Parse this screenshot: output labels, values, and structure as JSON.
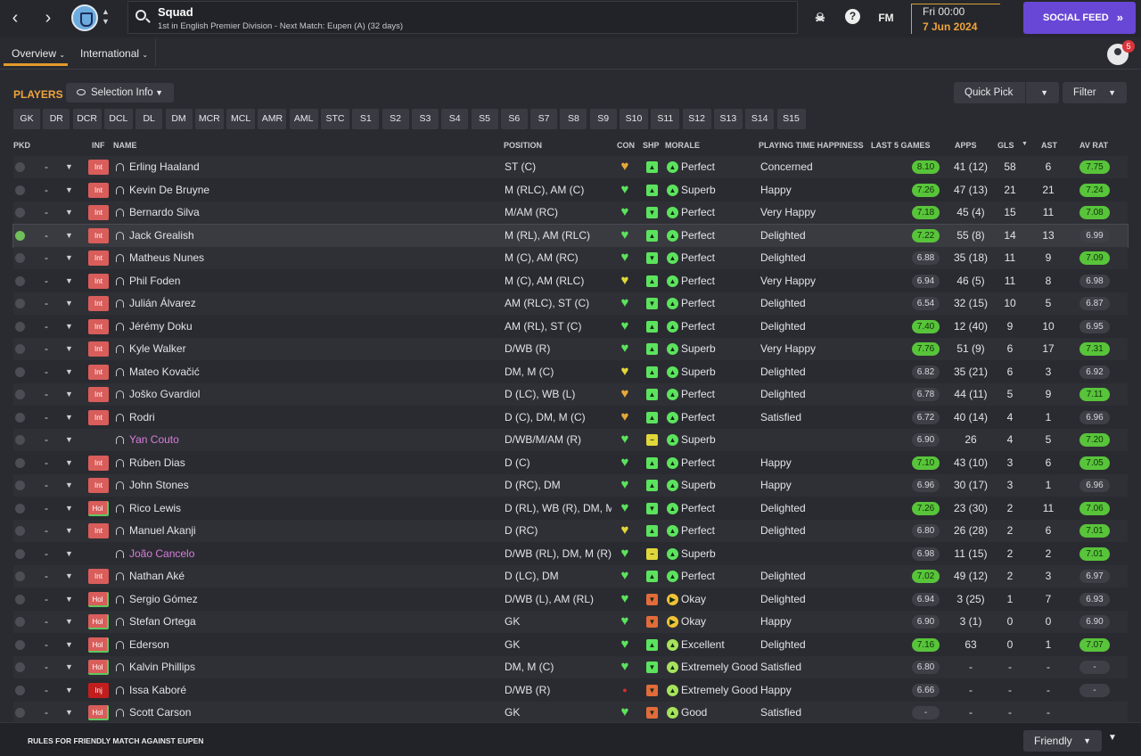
{
  "header": {
    "title": "Squad",
    "subtitle": "1st in English Premier Division - Next Match: Eupen (A) (32 days)",
    "fm_label": "FM",
    "help_label": "?",
    "date_time": "Fri 00:00",
    "date_day": "7 Jun 2024",
    "social_feed_label": "SOCIAL FEED",
    "notifications_count": "5"
  },
  "tabs": [
    {
      "label": "Overview"
    },
    {
      "label": "International"
    }
  ],
  "players_section": {
    "title": "PLAYERS",
    "selection_info_label": "Selection Info",
    "quick_pick_label": "Quick Pick",
    "filter_label": "Filter"
  },
  "position_filters": [
    "GK",
    "DR",
    "DCR",
    "DCL",
    "DL",
    "DM",
    "MCR",
    "MCL",
    "AMR",
    "AML",
    "STC",
    "S1",
    "S2",
    "S3",
    "S4",
    "S5",
    "S6",
    "S7",
    "S8",
    "S9",
    "S10",
    "S11",
    "S12",
    "S13",
    "S14",
    "S15"
  ],
  "columns": {
    "pkd": "PKD",
    "inf": "INF",
    "name": "NAME",
    "position": "POSITION",
    "con": "CON",
    "shp": "SHP",
    "morale": "MORALE",
    "pth": "PLAYING TIME HAPPINESS",
    "last5": "LAST 5 GAMES",
    "apps": "APPS",
    "gls": "GLS",
    "ast": "AST",
    "avrat": "AV RAT"
  },
  "colors": {
    "accent": "#f0a43a",
    "social": "#6947d6",
    "good": "#58c43a",
    "loan_name": "#d77ed9"
  },
  "players": [
    {
      "picked": false,
      "dash": "-",
      "inf": "Int",
      "name": "Erling Haaland",
      "position": "ST (C)",
      "con": "amber",
      "shp": "g",
      "shp_icon": "▲",
      "morale_icon": "g",
      "morale": "Perfect",
      "pth": "Concerned",
      "form": [
        "g",
        "g",
        "g",
        "g"
      ],
      "form_rating": "8.10",
      "form_hi": true,
      "apps": "41 (12)",
      "gls": "58",
      "ast": "6",
      "av_rat": "7.75",
      "av_hi": true
    },
    {
      "picked": false,
      "dash": "-",
      "inf": "Int",
      "name": "Kevin De Bruyne",
      "position": "M (RLC), AM (C)",
      "con": "green",
      "shp": "g",
      "shp_icon": "▲",
      "morale_icon": "g",
      "morale": "Superb",
      "pth": "Happy",
      "form": [
        "g",
        "g",
        "g",
        "g"
      ],
      "form_rating": "7.26",
      "form_hi": true,
      "apps": "47 (13)",
      "gls": "21",
      "ast": "21",
      "av_rat": "7.24",
      "av_hi": true
    },
    {
      "picked": false,
      "dash": "-",
      "inf": "Int",
      "name": "Bernardo Silva",
      "position": "M/AM (RC)",
      "con": "green",
      "shp": "g",
      "shp_icon": "▼",
      "morale_icon": "g",
      "morale": "Perfect",
      "pth": "Very Happy",
      "form": [
        "g",
        "o",
        "g",
        "g"
      ],
      "form_rating": "7.18",
      "form_hi": true,
      "apps": "45 (4)",
      "gls": "15",
      "ast": "11",
      "av_rat": "7.08",
      "av_hi": true
    },
    {
      "picked": true,
      "dash": "-",
      "inf": "Int",
      "name": "Jack Grealish",
      "position": "M (RL), AM (RLC)",
      "con": "green",
      "shp": "g",
      "shp_icon": "▲",
      "morale_icon": "g",
      "morale": "Perfect",
      "pth": "Delighted",
      "form": [
        "g",
        "g",
        "g",
        "g"
      ],
      "form_rating": "7.22",
      "form_hi": true,
      "apps": "55 (8)",
      "gls": "14",
      "ast": "13",
      "av_rat": "6.99",
      "av_hi": false
    },
    {
      "picked": false,
      "dash": "-",
      "inf": "Int",
      "name": "Matheus Nunes",
      "position": "M (C), AM (RC)",
      "con": "green",
      "shp": "g",
      "shp_icon": "▼",
      "morale_icon": "g",
      "morale": "Perfect",
      "pth": "Delighted",
      "form": [
        "g",
        "o",
        "g",
        "g"
      ],
      "form_rating": "6.88",
      "form_hi": false,
      "apps": "35 (18)",
      "gls": "11",
      "ast": "9",
      "av_rat": "7.09",
      "av_hi": true
    },
    {
      "picked": false,
      "dash": "-",
      "inf": "Int",
      "name": "Phil Foden",
      "position": "M (C), AM (RLC)",
      "con": "yellow",
      "shp": "g",
      "shp_icon": "▲",
      "morale_icon": "g",
      "morale": "Perfect",
      "pth": "Very Happy",
      "form": [
        "g",
        "g",
        "o",
        "g"
      ],
      "form_rating": "6.94",
      "form_hi": false,
      "apps": "46 (5)",
      "gls": "11",
      "ast": "8",
      "av_rat": "6.98",
      "av_hi": false
    },
    {
      "picked": false,
      "dash": "-",
      "inf": "Int",
      "name": "Julián Álvarez",
      "position": "AM (RLC), ST (C)",
      "con": "green",
      "shp": "g",
      "shp_icon": "▼",
      "morale_icon": "g",
      "morale": "Perfect",
      "pth": "Delighted",
      "form": [
        "o",
        "o",
        "o",
        "o"
      ],
      "form_rating": "6.54",
      "form_hi": false,
      "apps": "32 (15)",
      "gls": "10",
      "ast": "5",
      "av_rat": "6.87",
      "av_hi": false
    },
    {
      "picked": false,
      "dash": "-",
      "inf": "Int",
      "name": "Jérémy Doku",
      "position": "AM (RL), ST (C)",
      "con": "green",
      "shp": "g",
      "shp_icon": "▲",
      "morale_icon": "g",
      "morale": "Perfect",
      "pth": "Delighted",
      "form": [
        "g",
        "g",
        "g",
        "g"
      ],
      "form_rating": "7.40",
      "form_hi": true,
      "apps": "12 (40)",
      "gls": "9",
      "ast": "10",
      "av_rat": "6.95",
      "av_hi": false
    },
    {
      "picked": false,
      "dash": "-",
      "inf": "Int",
      "name": "Kyle Walker",
      "position": "D/WB (R)",
      "con": "green",
      "shp": "g",
      "shp_icon": "▲",
      "morale_icon": "g",
      "morale": "Superb",
      "pth": "Very Happy",
      "form": [
        "g",
        "g",
        "g",
        "g"
      ],
      "form_rating": "7.76",
      "form_hi": true,
      "apps": "51 (9)",
      "gls": "6",
      "ast": "17",
      "av_rat": "7.31",
      "av_hi": true
    },
    {
      "picked": false,
      "dash": "-",
      "inf": "Int",
      "name": "Mateo Kovačić",
      "position": "DM, M (C)",
      "con": "yellow",
      "shp": "g",
      "shp_icon": "▲",
      "morale_icon": "g",
      "morale": "Superb",
      "pth": "Delighted",
      "form": [
        "g",
        "o",
        "g",
        "g"
      ],
      "form_rating": "6.82",
      "form_hi": false,
      "apps": "35 (21)",
      "gls": "6",
      "ast": "3",
      "av_rat": "6.92",
      "av_hi": false
    },
    {
      "picked": false,
      "dash": "-",
      "inf": "Int",
      "name": "Joško Gvardiol",
      "position": "D (LC), WB (L)",
      "con": "amber",
      "shp": "g",
      "shp_icon": "▲",
      "morale_icon": "g",
      "morale": "Perfect",
      "pth": "Delighted",
      "form": [
        "g",
        "o",
        "g",
        "g"
      ],
      "form_rating": "6.78",
      "form_hi": false,
      "apps": "44 (11)",
      "gls": "5",
      "ast": "9",
      "av_rat": "7.11",
      "av_hi": true
    },
    {
      "picked": false,
      "dash": "-",
      "inf": "Int",
      "name": "Rodri",
      "position": "D (C), DM, M (C)",
      "con": "amber",
      "shp": "g",
      "shp_icon": "▲",
      "morale_icon": "g",
      "morale": "Perfect",
      "pth": "Satisfied",
      "form": [
        "g",
        "o",
        "g",
        "g"
      ],
      "form_rating": "6.72",
      "form_hi": false,
      "apps": "40 (14)",
      "gls": "4",
      "ast": "1",
      "av_rat": "6.96",
      "av_hi": false
    },
    {
      "picked": false,
      "dash": "-",
      "inf": "",
      "name": "Yan Couto",
      "loan": true,
      "position": "D/WB/M/AM (R)",
      "con": "green",
      "shp": "y",
      "shp_icon": "−",
      "morale_icon": "g",
      "morale": "Superb",
      "pth": "",
      "form": [
        "o",
        "r",
        "g",
        "g"
      ],
      "form_rating": "6.90",
      "form_hi": false,
      "apps": "26",
      "gls": "4",
      "ast": "5",
      "av_rat": "7.20",
      "av_hi": true
    },
    {
      "picked": false,
      "dash": "-",
      "inf": "Int",
      "name": "Rúben Dias",
      "position": "D (C)",
      "con": "green",
      "shp": "g",
      "shp_icon": "▲",
      "morale_icon": "g",
      "morale": "Perfect",
      "pth": "Happy",
      "form": [
        "g",
        "g",
        "g",
        "g"
      ],
      "form_rating": "7.10",
      "form_hi": true,
      "apps": "43 (10)",
      "gls": "3",
      "ast": "6",
      "av_rat": "7.05",
      "av_hi": true
    },
    {
      "picked": false,
      "dash": "-",
      "inf": "Int",
      "name": "John Stones",
      "position": "D (RC), DM",
      "con": "green",
      "shp": "g",
      "shp_icon": "▲",
      "morale_icon": "g",
      "morale": "Superb",
      "pth": "Happy",
      "form": [
        "o",
        "g",
        "g",
        "g"
      ],
      "form_rating": "6.96",
      "form_hi": false,
      "apps": "30 (17)",
      "gls": "3",
      "ast": "1",
      "av_rat": "6.96",
      "av_hi": false
    },
    {
      "picked": false,
      "dash": "-",
      "inf": "Hol",
      "name": "Rico Lewis",
      "position": "D (RL), WB (R), DM, M...",
      "con": "green",
      "shp": "g",
      "shp_icon": "▼",
      "morale_icon": "g",
      "morale": "Perfect",
      "pth": "Delighted",
      "form": [
        "g",
        "g",
        "g",
        "g"
      ],
      "form_rating": "7.26",
      "form_hi": true,
      "apps": "23 (30)",
      "gls": "2",
      "ast": "11",
      "av_rat": "7.06",
      "av_hi": true
    },
    {
      "picked": false,
      "dash": "-",
      "inf": "Int",
      "name": "Manuel Akanji",
      "position": "D (RC)",
      "con": "yellow",
      "shp": "g",
      "shp_icon": "▲",
      "morale_icon": "g",
      "morale": "Perfect",
      "pth": "Delighted",
      "form": [
        "g",
        "o",
        "g",
        "g"
      ],
      "form_rating": "6.80",
      "form_hi": false,
      "apps": "26 (28)",
      "gls": "2",
      "ast": "6",
      "av_rat": "7.01",
      "av_hi": true
    },
    {
      "picked": false,
      "dash": "-",
      "inf": "",
      "name": "João Cancelo",
      "loan": true,
      "position": "D/WB (RL), DM, M (R)",
      "con": "green",
      "shp": "y",
      "shp_icon": "−",
      "morale_icon": "g",
      "morale": "Superb",
      "pth": "",
      "form": [
        "o",
        "g",
        "g",
        "g"
      ],
      "form_rating": "6.98",
      "form_hi": false,
      "apps": "11 (15)",
      "gls": "2",
      "ast": "2",
      "av_rat": "7.01",
      "av_hi": true
    },
    {
      "picked": false,
      "dash": "-",
      "inf": "Int",
      "name": "Nathan Aké",
      "position": "D (LC), DM",
      "con": "green",
      "shp": "g",
      "shp_icon": "▲",
      "morale_icon": "g",
      "morale": "Perfect",
      "pth": "Delighted",
      "form": [
        "g",
        "g",
        "g",
        "g"
      ],
      "form_rating": "7.02",
      "form_hi": true,
      "apps": "49 (12)",
      "gls": "2",
      "ast": "3",
      "av_rat": "6.97",
      "av_hi": false
    },
    {
      "picked": false,
      "dash": "-",
      "inf": "Hol",
      "name": "Sergio Gómez",
      "position": "D/WB (L), AM (RL)",
      "con": "green",
      "shp": "o",
      "shp_icon": "▼",
      "morale_icon": "y",
      "morale": "Okay",
      "pth": "Delighted",
      "form": [
        "g",
        "o",
        "g",
        "g"
      ],
      "form_rating": "6.94",
      "form_hi": false,
      "apps": "3 (25)",
      "gls": "1",
      "ast": "7",
      "av_rat": "6.93",
      "av_hi": false
    },
    {
      "picked": false,
      "dash": "-",
      "inf": "Hol",
      "name": "Stefan Ortega",
      "position": "GK",
      "con": "green",
      "shp": "o",
      "shp_icon": "▼",
      "morale_icon": "y",
      "morale": "Okay",
      "pth": "Happy",
      "form": [
        "o",
        "g",
        "g",
        "g"
      ],
      "form_rating": "6.90",
      "form_hi": false,
      "apps": "3 (1)",
      "gls": "0",
      "ast": "0",
      "av_rat": "6.90",
      "av_hi": false
    },
    {
      "picked": false,
      "dash": "-",
      "inf": "Hol",
      "name": "Ederson",
      "position": "GK",
      "con": "green",
      "shp": "g",
      "shp_icon": "▲",
      "morale_icon": "lg",
      "morale": "Excellent",
      "pth": "Delighted",
      "form": [
        "g",
        "g",
        "g",
        "g"
      ],
      "form_rating": "7.16",
      "form_hi": true,
      "apps": "63",
      "gls": "0",
      "ast": "1",
      "av_rat": "7.07",
      "av_hi": true
    },
    {
      "picked": false,
      "dash": "-",
      "inf": "Hol",
      "name": "Kalvin Phillips",
      "position": "DM, M (C)",
      "con": "green",
      "shp": "g",
      "shp_icon": "▼",
      "morale_icon": "lg",
      "morale": "Extremely Good",
      "pth": "Satisfied",
      "form": [
        "o",
        "o",
        "g",
        "g"
      ],
      "form_rating": "6.80",
      "form_hi": false,
      "apps": "-",
      "gls": "-",
      "ast": "-",
      "av_rat": "-",
      "av_hi": false
    },
    {
      "picked": false,
      "dash": "-",
      "inf": "Inj",
      "name": "Issa Kaboré",
      "position": "D/WB (R)",
      "con": "inj",
      "shp": "o",
      "shp_icon": "▼",
      "morale_icon": "lg",
      "morale": "Extremely Good",
      "pth": "Happy",
      "form": [
        "o",
        "o",
        "g",
        "g"
      ],
      "form_rating": "6.66",
      "form_hi": false,
      "apps": "-",
      "gls": "-",
      "ast": "-",
      "av_rat": "-",
      "av_hi": false
    },
    {
      "picked": false,
      "dash": "-",
      "inf": "Hol",
      "name": "Scott Carson",
      "position": "GK",
      "con": "green",
      "shp": "o",
      "shp_icon": "▼",
      "morale_icon": "lg",
      "morale": "Good",
      "pth": "Satisfied",
      "form": [],
      "form_rating": "-",
      "form_hi": false,
      "apps": "-",
      "gls": "-",
      "ast": "-",
      "av_rat": "",
      "av_hi": false
    }
  ],
  "footer": {
    "rules_label": "RULES FOR FRIENDLY MATCH AGAINST EUPEN",
    "match_type": "Friendly"
  }
}
